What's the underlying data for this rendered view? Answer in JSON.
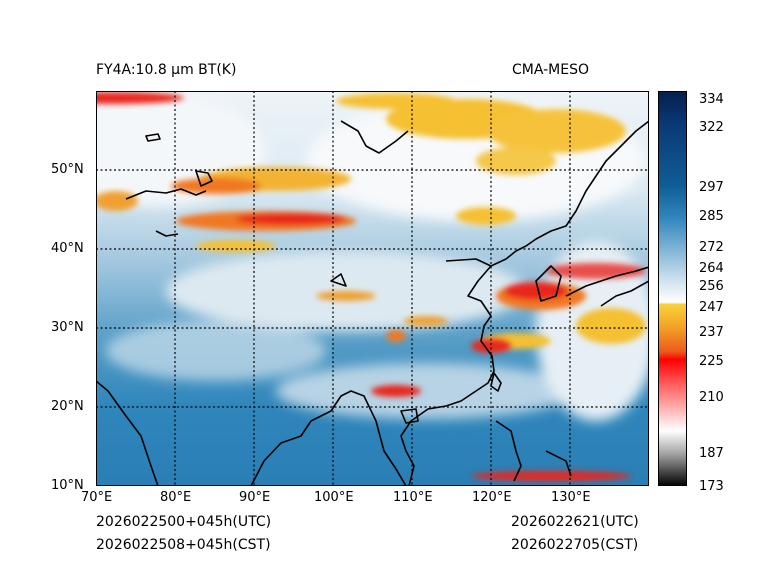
{
  "header": {
    "product_title": "FY4A:10.8 µm BT(K)",
    "model_name": "CMA-MESO"
  },
  "footer": {
    "init_utc": "2026022500+045h(UTC)",
    "init_cst": "2026022508+045h(CST)",
    "valid_utc": "2026022621(UTC)",
    "valid_cst": "2026022705(CST)"
  },
  "map": {
    "lon_labels": [
      "70°E",
      "80°E",
      "90°E",
      "100°E",
      "110°E",
      "120°E",
      "130°E"
    ],
    "lat_labels": [
      "10°N",
      "20°N",
      "30°N",
      "40°N",
      "50°N"
    ],
    "lon_range": [
      70,
      140
    ],
    "lat_range": [
      10,
      60
    ]
  },
  "colorbar": {
    "ticks": [
      "334",
      "322",
      "297",
      "285",
      "272",
      "264",
      "256",
      "247",
      "237",
      "225",
      "210",
      "187",
      "173"
    ],
    "range": [
      173,
      336
    ]
  },
  "colors": {
    "cold_tops_red": "#e8281e",
    "cold_tops_orange": "#f07820",
    "cloud_yellow": "#f5c032",
    "cloud_white": "#f4f8fb",
    "clear_blue": "#2f88bc",
    "warm_navy": "#082a5c"
  }
}
